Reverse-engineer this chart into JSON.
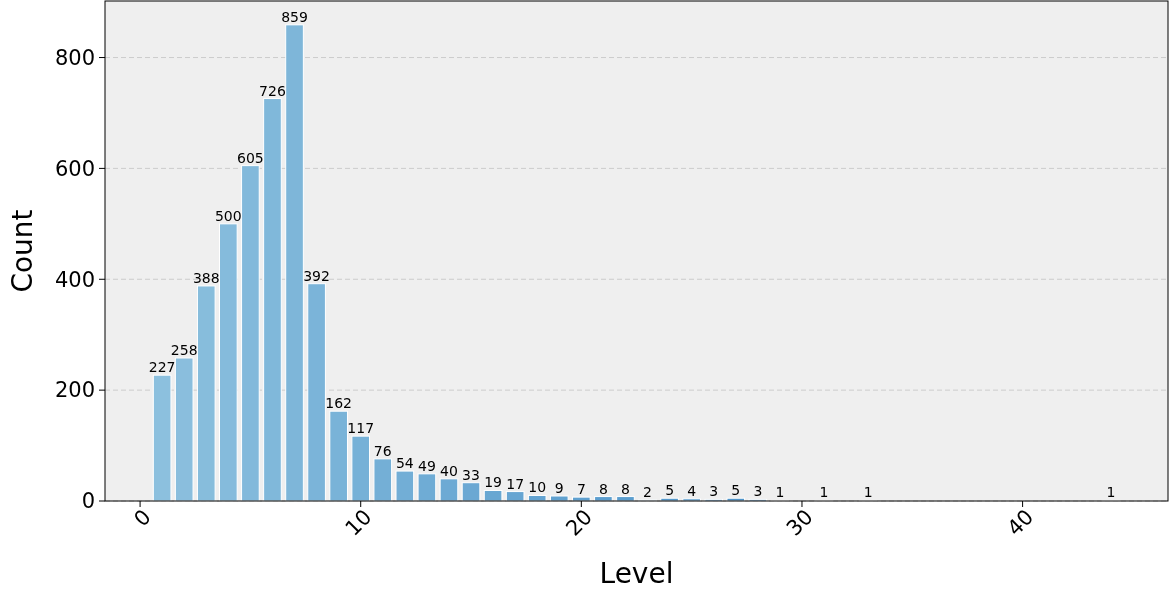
{
  "chart_data": {
    "type": "bar",
    "xlabel": "Level",
    "ylabel": "Count",
    "x": [
      1,
      2,
      3,
      4,
      5,
      6,
      7,
      8,
      9,
      10,
      11,
      12,
      13,
      14,
      15,
      16,
      17,
      18,
      19,
      20,
      21,
      22,
      23,
      24,
      25,
      26,
      27,
      28,
      29,
      31,
      33,
      44
    ],
    "values": [
      227,
      258,
      388,
      500,
      605,
      726,
      859,
      392,
      162,
      117,
      76,
      54,
      49,
      40,
      33,
      19,
      17,
      10,
      9,
      7,
      8,
      8,
      2,
      5,
      4,
      3,
      5,
      3,
      1,
      1,
      1,
      1
    ],
    "colors": [
      "#8cc0de",
      "#8abedd",
      "#87bddc",
      "#85bbdc",
      "#82b9db",
      "#80b8da",
      "#7eb6d9",
      "#7bb4d9",
      "#79b3d8",
      "#76b1d7",
      "#74afd6",
      "#72aed6",
      "#6facd5",
      "#6daad4",
      "#6ba8d3",
      "#68a7d2",
      "#66a5d2",
      "#63a3d1",
      "#61a2d0",
      "#5fa0cf",
      "#5c9ecf",
      "#5a9dce",
      "#579bcd",
      "#5599cc",
      "#5398cc",
      "#5096cb",
      "#4e94ca",
      "#4c92c9",
      "#4991c8",
      "#478fc8",
      "#448dc7",
      "#428cc6"
    ],
    "xlim": [
      -1.59,
      46.59
    ],
    "xticks": [
      0,
      10,
      20,
      30,
      40
    ],
    "ylim": [
      0,
      902
    ],
    "yticks": [
      0,
      200,
      400,
      600,
      800
    ],
    "grid": "y",
    "data_labels": true
  }
}
